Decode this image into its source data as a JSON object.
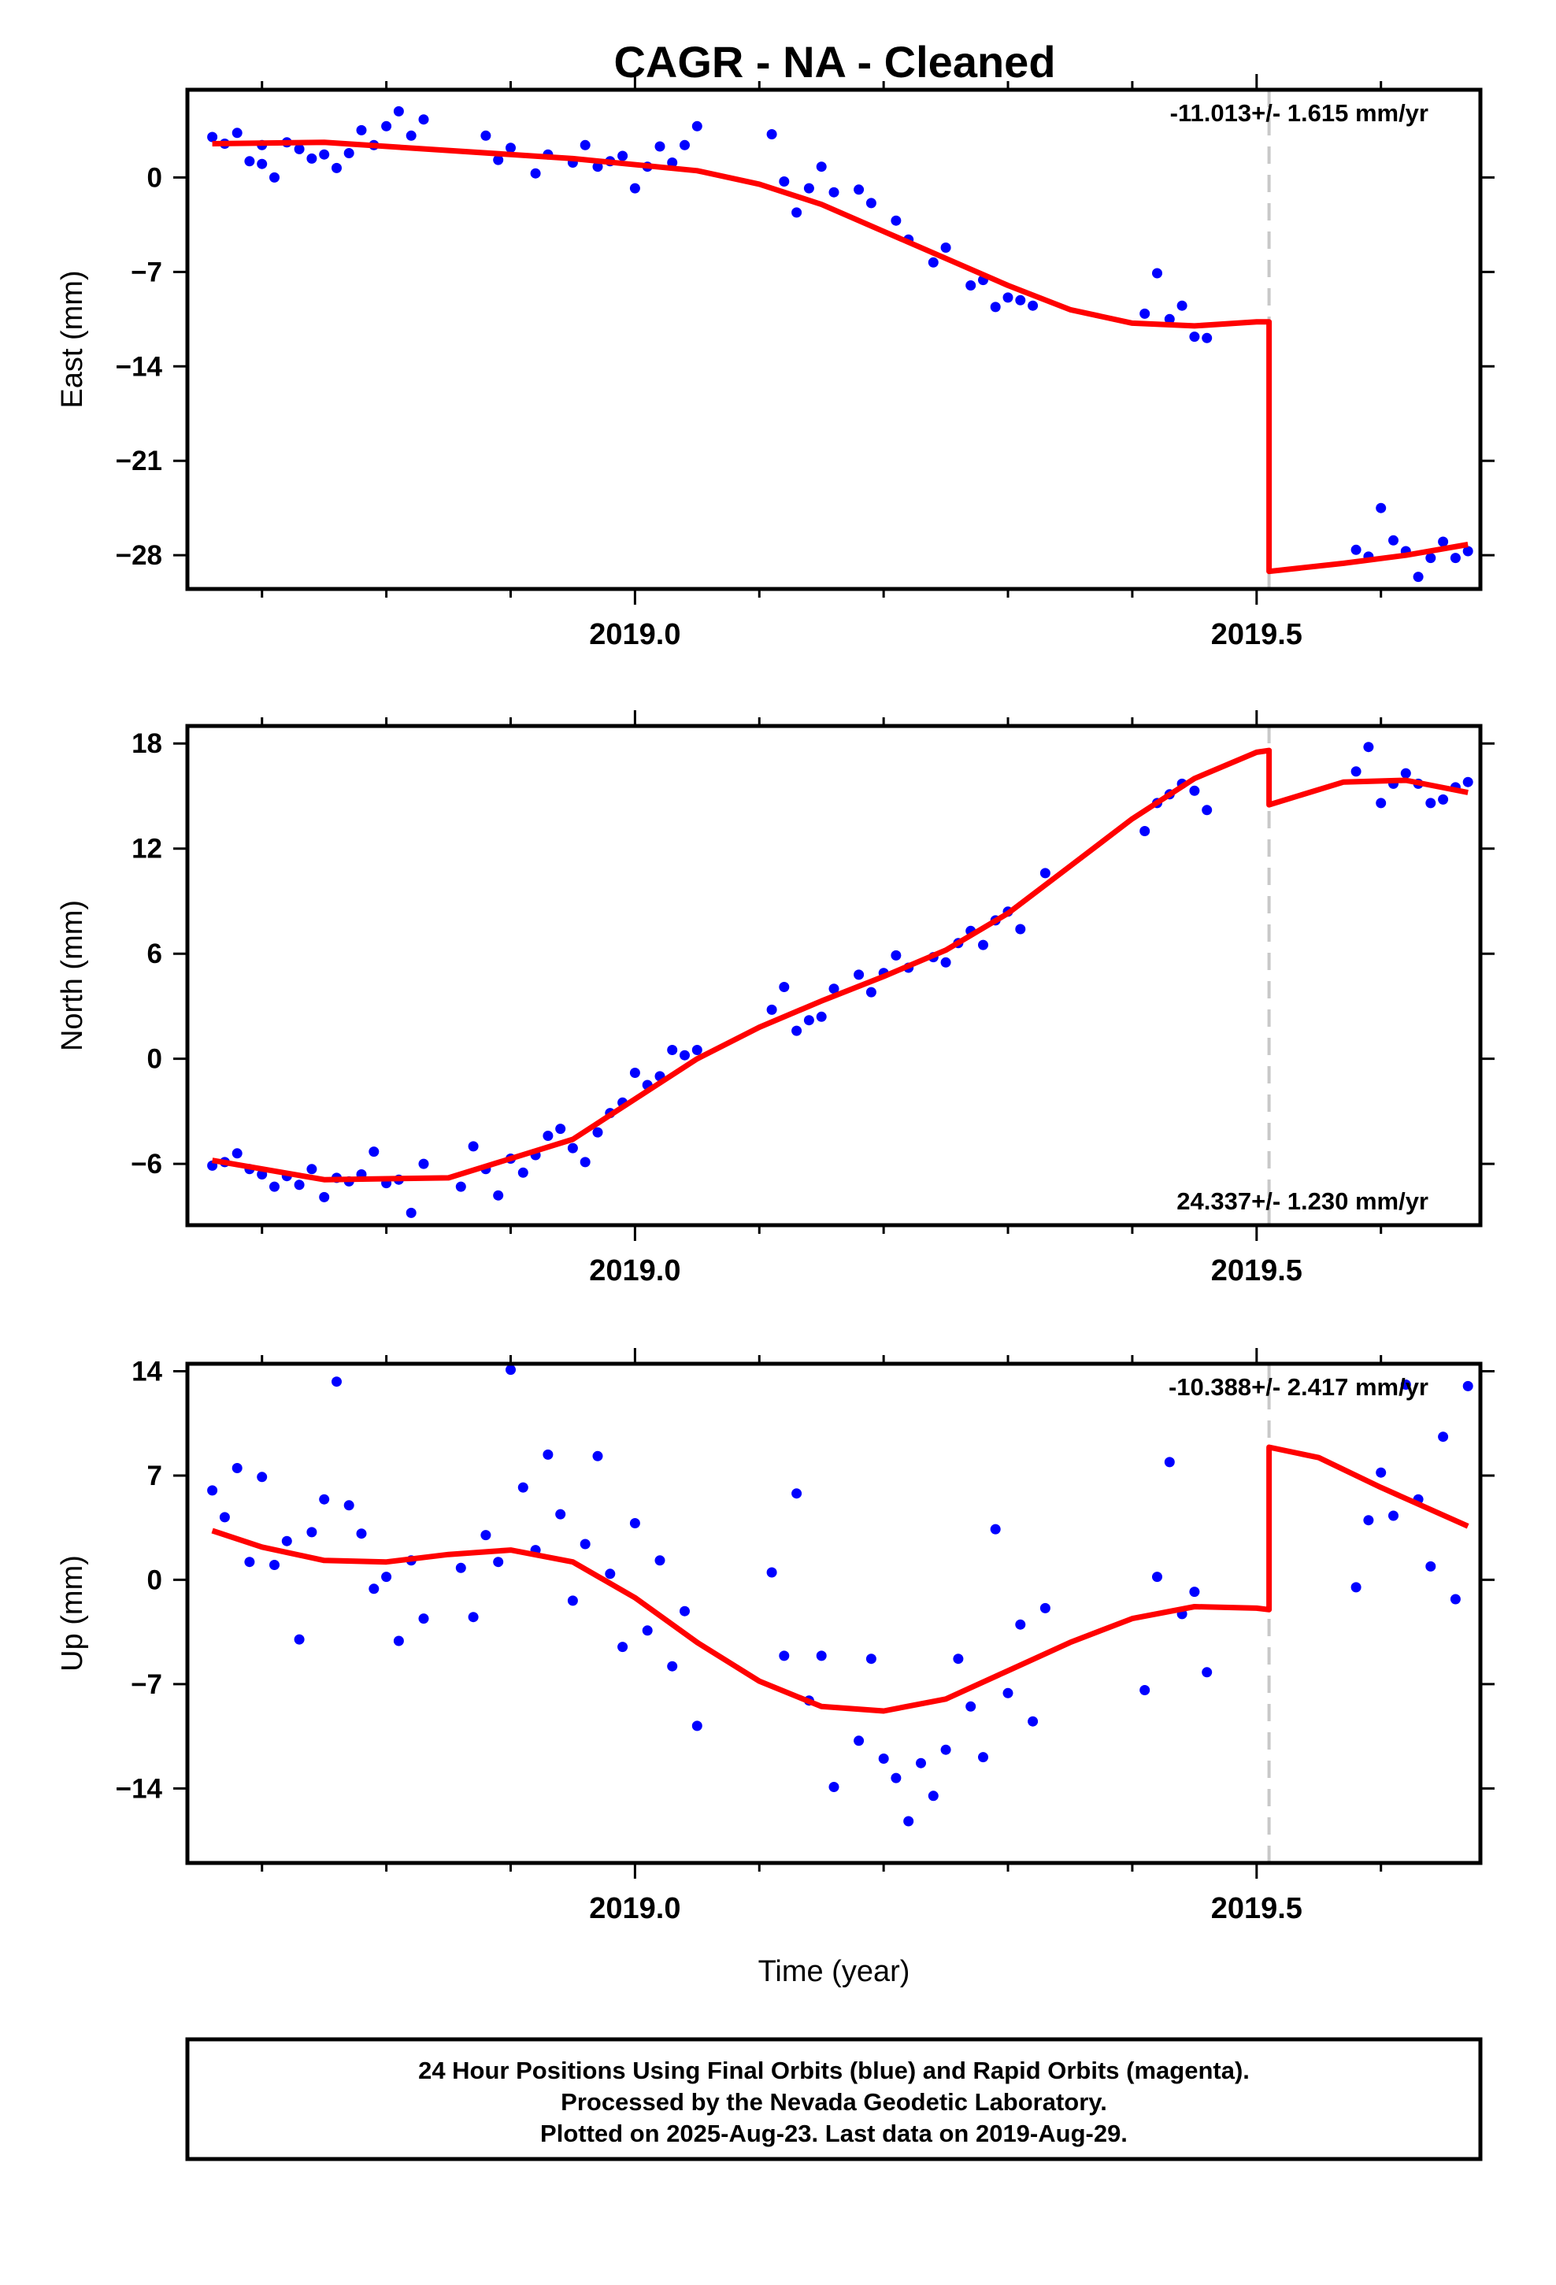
{
  "title": "CAGR  - NA - Cleaned",
  "footer": {
    "line1": "24 Hour Positions Using Final Orbits (blue) and Rapid Orbits (magenta).",
    "line2": "Processed by the Nevada Geodetic Laboratory.",
    "line3": "Plotted on 2025-Aug-23. Last data on 2019-Aug-29."
  },
  "colors": {
    "data": "#0000ff",
    "model": "#ff0000",
    "break": "#c8c8c8",
    "frame": "#000000"
  },
  "chart_data": [
    {
      "type": "scatter",
      "component": "east",
      "ylabel": "East (mm)",
      "xlabel": "",
      "xlim": [
        2018.64,
        2019.68
      ],
      "ylim": [
        -30.5,
        6.5
      ],
      "yticks": [
        0,
        -7,
        -14,
        -21,
        -28
      ],
      "ytick_labels": [
        "0",
        "−7",
        "−14",
        "−21",
        "−28"
      ],
      "xticks": [
        2019.0,
        2019.5
      ],
      "xtick_labels": [
        "2019.0",
        "2019.5"
      ],
      "rate": "-11.013+/- 1.615 mm/yr",
      "rate_position": "top-right",
      "break_epoch": 2019.51,
      "model": {
        "x": [
          2018.66,
          2018.75,
          2018.85,
          2018.95,
          2019.05,
          2019.1,
          2019.15,
          2019.2,
          2019.25,
          2019.3,
          2019.35,
          2019.4,
          2019.45,
          2019.5,
          2019.51,
          2019.51,
          2019.57,
          2019.62,
          2019.67
        ],
        "y": [
          2.5,
          2.6,
          2.0,
          1.4,
          0.5,
          -0.5,
          -2.0,
          -4.0,
          -6.0,
          -8.0,
          -9.8,
          -10.8,
          -11.0,
          -10.7,
          -10.7,
          -29.2,
          -28.6,
          -28.0,
          -27.2
        ]
      },
      "points": {
        "x": [
          2018.66,
          2018.67,
          2018.68,
          2018.69,
          2018.7,
          2018.7,
          2018.71,
          2018.72,
          2018.73,
          2018.74,
          2018.75,
          2018.76,
          2018.77,
          2018.78,
          2018.79,
          2018.8,
          2018.81,
          2018.82,
          2018.83,
          2018.88,
          2018.89,
          2018.9,
          2018.92,
          2018.93,
          2018.95,
          2018.96,
          2018.97,
          2018.98,
          2018.99,
          2019.0,
          2019.01,
          2019.02,
          2019.03,
          2019.04,
          2019.05,
          2019.11,
          2019.12,
          2019.13,
          2019.14,
          2019.15,
          2019.16,
          2019.18,
          2019.19,
          2019.21,
          2019.22,
          2019.24,
          2019.25,
          2019.27,
          2019.28,
          2019.29,
          2019.3,
          2019.31,
          2019.32,
          2019.41,
          2019.42,
          2019.43,
          2019.44,
          2019.45,
          2019.46,
          2019.58,
          2019.59,
          2019.6,
          2019.61,
          2019.62,
          2019.63,
          2019.64,
          2019.65,
          2019.66,
          2019.67
        ],
        "y": [
          3.0,
          2.5,
          3.3,
          1.2,
          2.4,
          1.0,
          0.0,
          2.6,
          2.1,
          1.4,
          1.7,
          0.7,
          1.8,
          3.5,
          2.4,
          3.8,
          4.9,
          3.1,
          4.3,
          3.1,
          1.3,
          2.2,
          0.3,
          1.7,
          1.1,
          2.4,
          0.8,
          1.2,
          1.6,
          -0.8,
          0.8,
          2.3,
          1.1,
          2.4,
          3.8,
          3.2,
          -0.3,
          -2.6,
          -0.8,
          0.8,
          -1.1,
          -0.9,
          -1.9,
          -3.2,
          -4.6,
          -6.3,
          -5.2,
          -8.0,
          -7.6,
          -9.6,
          -8.9,
          -9.1,
          -9.5,
          -10.1,
          -7.1,
          -10.5,
          -9.5,
          -11.8,
          -11.9,
          -27.6,
          -28.1,
          -24.5,
          -26.9,
          -27.7,
          -29.6,
          -28.2,
          -27.0,
          -28.2,
          -27.7
        ]
      }
    },
    {
      "type": "scatter",
      "component": "north",
      "ylabel": "North (mm)",
      "xlabel": "",
      "xlim": [
        2018.64,
        2019.68
      ],
      "ylim": [
        -9.5,
        19.0
      ],
      "yticks": [
        18,
        12,
        6,
        0,
        -6
      ],
      "ytick_labels": [
        "18",
        "12",
        "6",
        "0",
        "−6"
      ],
      "xticks": [
        2019.0,
        2019.5
      ],
      "xtick_labels": [
        "2019.0",
        "2019.5"
      ],
      "rate": "24.337+/- 1.230 mm/yr",
      "rate_position": "bottom-right",
      "break_epoch": 2019.51,
      "model": {
        "x": [
          2018.66,
          2018.75,
          2018.85,
          2018.95,
          2019.0,
          2019.05,
          2019.1,
          2019.15,
          2019.2,
          2019.25,
          2019.3,
          2019.35,
          2019.4,
          2019.45,
          2019.5,
          2019.51,
          2019.51,
          2019.57,
          2019.62,
          2019.67
        ],
        "y": [
          -5.8,
          -6.9,
          -6.8,
          -4.6,
          -2.3,
          0.0,
          1.8,
          3.3,
          4.7,
          6.2,
          8.3,
          11.0,
          13.7,
          16.0,
          17.5,
          17.6,
          14.5,
          15.8,
          15.9,
          15.2
        ]
      },
      "points": {
        "x": [
          2018.66,
          2018.67,
          2018.68,
          2018.69,
          2018.7,
          2018.71,
          2018.72,
          2018.73,
          2018.74,
          2018.75,
          2018.76,
          2018.77,
          2018.78,
          2018.79,
          2018.8,
          2018.81,
          2018.82,
          2018.83,
          2018.86,
          2018.87,
          2018.88,
          2018.89,
          2018.9,
          2018.91,
          2018.92,
          2018.93,
          2018.94,
          2018.95,
          2018.96,
          2018.97,
          2018.98,
          2018.99,
          2019.0,
          2019.01,
          2019.02,
          2019.03,
          2019.04,
          2019.05,
          2019.11,
          2019.12,
          2019.13,
          2019.14,
          2019.15,
          2019.16,
          2019.18,
          2019.19,
          2019.2,
          2019.21,
          2019.22,
          2019.24,
          2019.25,
          2019.26,
          2019.27,
          2019.28,
          2019.29,
          2019.3,
          2019.31,
          2019.33,
          2019.41,
          2019.42,
          2019.43,
          2019.44,
          2019.45,
          2019.46,
          2019.58,
          2019.59,
          2019.6,
          2019.61,
          2019.62,
          2019.63,
          2019.64,
          2019.65,
          2019.66,
          2019.67
        ],
        "y": [
          -6.1,
          -5.9,
          -5.4,
          -6.3,
          -6.6,
          -7.3,
          -6.7,
          -7.2,
          -6.3,
          -7.9,
          -6.8,
          -7.0,
          -6.6,
          -5.3,
          -7.1,
          -6.9,
          -8.8,
          -6.0,
          -7.3,
          -5.0,
          -6.3,
          -7.8,
          -5.7,
          -6.5,
          -5.5,
          -4.4,
          -4.0,
          -5.1,
          -5.9,
          -4.2,
          -3.1,
          -2.5,
          -0.8,
          -1.5,
          -1.0,
          0.5,
          0.2,
          0.5,
          2.8,
          4.1,
          1.6,
          2.2,
          2.4,
          4.0,
          4.8,
          3.8,
          4.9,
          5.9,
          5.2,
          5.8,
          5.5,
          6.6,
          7.3,
          6.5,
          7.9,
          8.4,
          7.4,
          10.6,
          13.0,
          14.6,
          15.1,
          15.7,
          15.3,
          14.2,
          16.4,
          17.8,
          14.6,
          15.7,
          16.3,
          15.7,
          14.6,
          14.8,
          15.5,
          15.8
        ]
      }
    },
    {
      "type": "scatter",
      "component": "up",
      "ylabel": "Up (mm)",
      "xlabel": "Time (year)",
      "xlim": [
        2018.64,
        2019.68
      ],
      "ylim": [
        -19.0,
        14.5
      ],
      "yticks": [
        14,
        7,
        0,
        -7,
        -14
      ],
      "ytick_labels": [
        "14",
        "7",
        "0",
        "−7",
        "−14"
      ],
      "xticks": [
        2019.0,
        2019.5
      ],
      "xtick_labels": [
        "2019.0",
        "2019.5"
      ],
      "rate": "-10.388+/- 2.417 mm/yr",
      "rate_position": "top-right",
      "break_epoch": 2019.51,
      "model": {
        "x": [
          2018.66,
          2018.7,
          2018.75,
          2018.8,
          2018.85,
          2018.9,
          2018.95,
          2019.0,
          2019.05,
          2019.1,
          2019.15,
          2019.2,
          2019.25,
          2019.3,
          2019.35,
          2019.4,
          2019.45,
          2019.5,
          2019.51,
          2019.51,
          2019.55,
          2019.6,
          2019.67
        ],
        "y": [
          3.3,
          2.2,
          1.3,
          1.2,
          1.7,
          2.0,
          1.2,
          -1.2,
          -4.2,
          -6.8,
          -8.5,
          -8.8,
          -8.0,
          -6.1,
          -4.2,
          -2.6,
          -1.8,
          -1.9,
          -2.0,
          8.9,
          8.2,
          6.2,
          3.6
        ]
      },
      "points": {
        "x": [
          2018.66,
          2018.67,
          2018.68,
          2018.69,
          2018.7,
          2018.71,
          2018.72,
          2018.73,
          2018.74,
          2018.75,
          2018.76,
          2018.77,
          2018.78,
          2018.79,
          2018.8,
          2018.81,
          2018.82,
          2018.83,
          2018.86,
          2018.87,
          2018.88,
          2018.89,
          2018.9,
          2018.91,
          2018.92,
          2018.93,
          2018.94,
          2018.95,
          2018.96,
          2018.97,
          2018.98,
          2018.99,
          2019.0,
          2019.01,
          2019.02,
          2019.03,
          2019.04,
          2019.05,
          2019.11,
          2019.12,
          2019.13,
          2019.14,
          2019.15,
          2019.16,
          2019.18,
          2019.19,
          2019.2,
          2019.21,
          2019.22,
          2019.23,
          2019.24,
          2019.25,
          2019.26,
          2019.27,
          2019.28,
          2019.29,
          2019.3,
          2019.31,
          2019.32,
          2019.33,
          2019.41,
          2019.42,
          2019.43,
          2019.44,
          2019.45,
          2019.46,
          2019.58,
          2019.59,
          2019.6,
          2019.61,
          2019.62,
          2019.63,
          2019.64,
          2019.65,
          2019.66,
          2019.67
        ],
        "y": [
          6.0,
          4.2,
          7.5,
          1.2,
          6.9,
          1.0,
          2.6,
          -4.0,
          3.2,
          5.4,
          13.3,
          5.0,
          3.1,
          -0.6,
          0.2,
          -4.1,
          1.3,
          -2.6,
          0.8,
          -2.5,
          3.0,
          1.2,
          14.1,
          6.2,
          2.0,
          8.4,
          4.4,
          -1.4,
          2.4,
          8.3,
          0.4,
          -4.5,
          3.8,
          -3.4,
          1.3,
          -5.8,
          -2.1,
          -9.8,
          0.5,
          -5.1,
          5.8,
          -8.1,
          -5.1,
          -13.9,
          -10.8,
          -5.3,
          -12.0,
          -13.3,
          -16.2,
          -12.3,
          -14.5,
          -11.4,
          -5.3,
          -8.5,
          -11.9,
          3.4,
          -7.6,
          -3.0,
          -9.5,
          -1.9,
          -7.4,
          0.2,
          7.9,
          -2.3,
          -0.8,
          -6.2,
          -0.5,
          4.0,
          7.2,
          4.3,
          13.1,
          5.4,
          0.9,
          9.6,
          -1.3,
          13.0
        ]
      }
    }
  ]
}
